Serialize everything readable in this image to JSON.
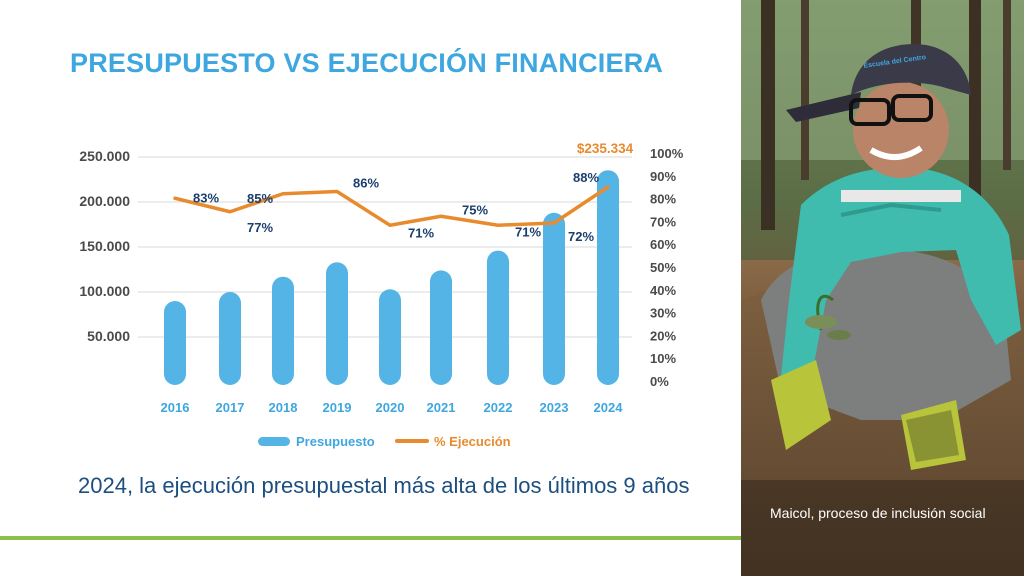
{
  "title": "PRESUPUESTO VS EJECUCIÓN FINANCIERA",
  "subtitle": "2024, la ejecución presupuestal más alta de los últimos 9 años",
  "photo": {
    "caption": "Maicol, proceso de inclusión social",
    "cap_text": "Escuela del Centro"
  },
  "colors": {
    "accent": "#3ea7e0",
    "bar": "#55b4e6",
    "line": "#e88b2e",
    "green_rule": "#8cc04a",
    "label_navy": "#1c3f6e"
  },
  "chart_data": {
    "type": "bar+line",
    "categories": [
      "2016",
      "2017",
      "2018",
      "2019",
      "2020",
      "2021",
      "2022",
      "2023",
      "2024"
    ],
    "series": [
      {
        "name": "Presupuesto",
        "type": "bar",
        "axis": "left",
        "values": [
          90000,
          100000,
          117000,
          133000,
          103000,
          124000,
          146000,
          188000,
          235334
        ]
      },
      {
        "name": "% Ejecución",
        "type": "line",
        "axis": "right",
        "values": [
          83,
          77,
          85,
          86,
          71,
          75,
          71,
          72,
          88
        ]
      }
    ],
    "point_labels": [
      "83%",
      "77%",
      "85%",
      "86%",
      "71%",
      "75%",
      "71%",
      "72%",
      "88%"
    ],
    "highlight_label": "$235.334",
    "left_axis": {
      "ticks": [
        "250.000",
        "200.000",
        "150.000",
        "100.000",
        "50.000"
      ],
      "tick_values": [
        250000,
        200000,
        150000,
        100000,
        50000
      ]
    },
    "right_axis": {
      "ticks": [
        "100%",
        "90%",
        "80%",
        "70%",
        "60%",
        "50%",
        "40%",
        "30%",
        "20%",
        "10%",
        "0%"
      ],
      "tick_values": [
        100,
        90,
        80,
        70,
        60,
        50,
        40,
        30,
        20,
        10,
        0
      ]
    },
    "ylim_left": [
      0,
      250000
    ],
    "ylim_right": [
      0,
      100
    ],
    "grid": true,
    "legend_position": "bottom"
  }
}
